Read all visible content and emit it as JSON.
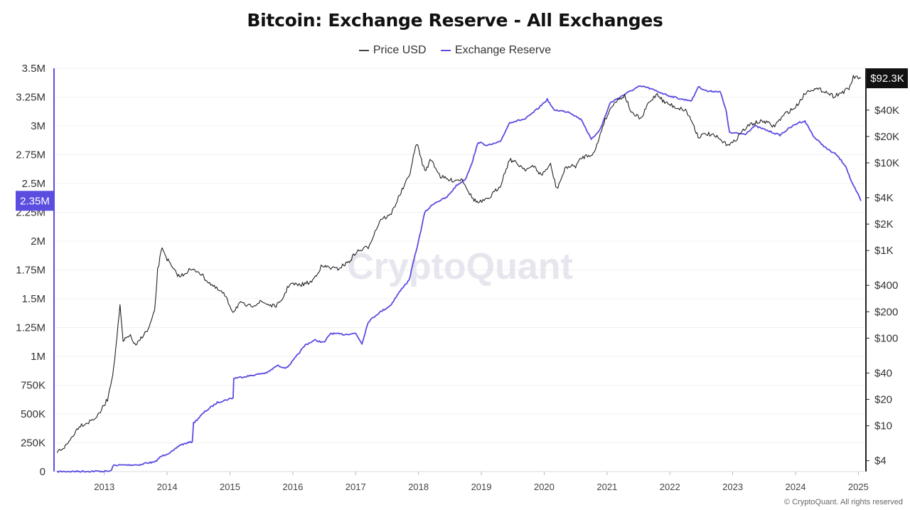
{
  "chart_data": {
    "type": "line",
    "title": "Bitcoin: Exchange Reserve - All Exchanges",
    "watermark": "CryptoQuant",
    "copyright": "© CryptoQuant. All rights reserved",
    "x_ticks": [
      "2013",
      "2014",
      "2015",
      "2016",
      "2017",
      "2018",
      "2019",
      "2020",
      "2021",
      "2022",
      "2023",
      "2024",
      "2025"
    ],
    "left_axis": {
      "min": 0,
      "max": 3500000,
      "ticks": [
        {
          "v": 0,
          "label": "0"
        },
        {
          "v": 250000,
          "label": "250K"
        },
        {
          "v": 500000,
          "label": "500K"
        },
        {
          "v": 750000,
          "label": "750K"
        },
        {
          "v": 1000000,
          "label": "1M"
        },
        {
          "v": 1250000,
          "label": "1.25M"
        },
        {
          "v": 1500000,
          "label": "1.5M"
        },
        {
          "v": 1750000,
          "label": "1.75M"
        },
        {
          "v": 2000000,
          "label": "2M"
        },
        {
          "v": 2250000,
          "label": "2.25M"
        },
        {
          "v": 2500000,
          "label": "2.5M"
        },
        {
          "v": 2750000,
          "label": "2.75M"
        },
        {
          "v": 3000000,
          "label": "3M"
        },
        {
          "v": 3250000,
          "label": "3.25M"
        },
        {
          "v": 3500000,
          "label": "3.5M"
        }
      ],
      "current_label": "2.35M",
      "current_value": 2350000
    },
    "right_axis": {
      "scale": "log",
      "min": 3,
      "max": 120000,
      "ticks": [
        {
          "v": 4,
          "label": "$4"
        },
        {
          "v": 10,
          "label": "$10"
        },
        {
          "v": 20,
          "label": "$20"
        },
        {
          "v": 40,
          "label": "$40"
        },
        {
          "v": 100,
          "label": "$100"
        },
        {
          "v": 200,
          "label": "$200"
        },
        {
          "v": 400,
          "label": "$400"
        },
        {
          "v": 1000,
          "label": "$1K"
        },
        {
          "v": 2000,
          "label": "$2K"
        },
        {
          "v": 4000,
          "label": "$4K"
        },
        {
          "v": 10000,
          "label": "$10K"
        },
        {
          "v": 20000,
          "label": "$20K"
        },
        {
          "v": 40000,
          "label": "$40K"
        }
      ],
      "current_label": "$92.3K",
      "current_value": 92300
    },
    "series": [
      {
        "name": "Price USD",
        "color": "#222222",
        "axis": "right",
        "points": [
          [
            2012.25,
            5
          ],
          [
            2012.4,
            6
          ],
          [
            2012.6,
            10
          ],
          [
            2012.75,
            11
          ],
          [
            2012.9,
            13
          ],
          [
            2013.05,
            20
          ],
          [
            2013.15,
            45
          ],
          [
            2013.25,
            230
          ],
          [
            2013.3,
            90
          ],
          [
            2013.4,
            110
          ],
          [
            2013.5,
            80
          ],
          [
            2013.6,
            105
          ],
          [
            2013.7,
            125
          ],
          [
            2013.8,
            200
          ],
          [
            2013.85,
            600
          ],
          [
            2013.92,
            1100
          ],
          [
            2014.0,
            800
          ],
          [
            2014.1,
            600
          ],
          [
            2014.2,
            500
          ],
          [
            2014.35,
            600
          ],
          [
            2014.5,
            580
          ],
          [
            2014.6,
            480
          ],
          [
            2014.75,
            380
          ],
          [
            2014.9,
            320
          ],
          [
            2015.05,
            200
          ],
          [
            2015.15,
            250
          ],
          [
            2015.3,
            230
          ],
          [
            2015.5,
            260
          ],
          [
            2015.7,
            230
          ],
          [
            2015.8,
            250
          ],
          [
            2015.95,
            420
          ],
          [
            2016.1,
            400
          ],
          [
            2016.3,
            440
          ],
          [
            2016.45,
            650
          ],
          [
            2016.55,
            650
          ],
          [
            2016.7,
            610
          ],
          [
            2016.9,
            750
          ],
          [
            2017.0,
            950
          ],
          [
            2017.2,
            1100
          ],
          [
            2017.4,
            2300
          ],
          [
            2017.55,
            2500
          ],
          [
            2017.7,
            4300
          ],
          [
            2017.85,
            7000
          ],
          [
            2017.97,
            17000
          ],
          [
            2018.1,
            8000
          ],
          [
            2018.2,
            11000
          ],
          [
            2018.35,
            7000
          ],
          [
            2018.5,
            6300
          ],
          [
            2018.7,
            6500
          ],
          [
            2018.85,
            4000
          ],
          [
            2018.95,
            3500
          ],
          [
            2019.1,
            3800
          ],
          [
            2019.3,
            5500
          ],
          [
            2019.45,
            11000
          ],
          [
            2019.55,
            10000
          ],
          [
            2019.7,
            8500
          ],
          [
            2019.85,
            9000
          ],
          [
            2019.95,
            7200
          ],
          [
            2020.1,
            9500
          ],
          [
            2020.2,
            5000
          ],
          [
            2020.35,
            9000
          ],
          [
            2020.5,
            9200
          ],
          [
            2020.6,
            11500
          ],
          [
            2020.8,
            13000
          ],
          [
            2020.95,
            29000
          ],
          [
            2021.1,
            48000
          ],
          [
            2021.28,
            59000
          ],
          [
            2021.4,
            36000
          ],
          [
            2021.55,
            32000
          ],
          [
            2021.65,
            47000
          ],
          [
            2021.8,
            62000
          ],
          [
            2021.9,
            50000
          ],
          [
            2022.1,
            43000
          ],
          [
            2022.25,
            40000
          ],
          [
            2022.35,
            30000
          ],
          [
            2022.45,
            20000
          ],
          [
            2022.6,
            21500
          ],
          [
            2022.75,
            19500
          ],
          [
            2022.88,
            16500
          ],
          [
            2023.0,
            16700
          ],
          [
            2023.15,
            23000
          ],
          [
            2023.3,
            28000
          ],
          [
            2023.5,
            30000
          ],
          [
            2023.65,
            26000
          ],
          [
            2023.85,
            37000
          ],
          [
            2024.0,
            43000
          ],
          [
            2024.15,
            62000
          ],
          [
            2024.25,
            70000
          ],
          [
            2024.45,
            67000
          ],
          [
            2024.6,
            58000
          ],
          [
            2024.75,
            64000
          ],
          [
            2024.85,
            70000
          ],
          [
            2024.92,
            95000
          ],
          [
            2025.0,
            94000
          ],
          [
            2025.04,
            92300
          ]
        ]
      },
      {
        "name": "Exchange Reserve",
        "color": "#5b4de0",
        "axis": "left",
        "points": [
          [
            2012.25,
            0
          ],
          [
            2012.6,
            2000
          ],
          [
            2013.1,
            3000
          ],
          [
            2013.15,
            55000
          ],
          [
            2013.6,
            60000
          ],
          [
            2013.65,
            75000
          ],
          [
            2013.8,
            80000
          ],
          [
            2013.9,
            130000
          ],
          [
            2014.1,
            180000
          ],
          [
            2014.2,
            230000
          ],
          [
            2014.4,
            260000
          ],
          [
            2014.42,
            420000
          ],
          [
            2014.6,
            520000
          ],
          [
            2014.8,
            600000
          ],
          [
            2015.05,
            640000
          ],
          [
            2015.06,
            810000
          ],
          [
            2015.3,
            830000
          ],
          [
            2015.6,
            860000
          ],
          [
            2015.75,
            920000
          ],
          [
            2015.9,
            900000
          ],
          [
            2016.0,
            960000
          ],
          [
            2016.2,
            1100000
          ],
          [
            2016.35,
            1140000
          ],
          [
            2016.5,
            1120000
          ],
          [
            2016.6,
            1200000
          ],
          [
            2016.8,
            1190000
          ],
          [
            2017.0,
            1200000
          ],
          [
            2017.1,
            1110000
          ],
          [
            2017.2,
            1300000
          ],
          [
            2017.35,
            1370000
          ],
          [
            2017.55,
            1440000
          ],
          [
            2017.75,
            1600000
          ],
          [
            2017.85,
            1660000
          ],
          [
            2018.0,
            2000000
          ],
          [
            2018.1,
            2250000
          ],
          [
            2018.25,
            2330000
          ],
          [
            2018.45,
            2380000
          ],
          [
            2018.6,
            2480000
          ],
          [
            2018.75,
            2540000
          ],
          [
            2018.85,
            2680000
          ],
          [
            2018.95,
            2860000
          ],
          [
            2019.1,
            2830000
          ],
          [
            2019.3,
            2860000
          ],
          [
            2019.45,
            3030000
          ],
          [
            2019.7,
            3060000
          ],
          [
            2019.9,
            3150000
          ],
          [
            2020.05,
            3230000
          ],
          [
            2020.15,
            3140000
          ],
          [
            2020.4,
            3120000
          ],
          [
            2020.6,
            3050000
          ],
          [
            2020.75,
            2880000
          ],
          [
            2020.9,
            2980000
          ],
          [
            2021.05,
            3200000
          ],
          [
            2021.3,
            3280000
          ],
          [
            2021.5,
            3340000
          ],
          [
            2021.6,
            3340000
          ],
          [
            2021.8,
            3300000
          ],
          [
            2022.0,
            3260000
          ],
          [
            2022.2,
            3230000
          ],
          [
            2022.35,
            3220000
          ],
          [
            2022.45,
            3340000
          ],
          [
            2022.6,
            3300000
          ],
          [
            2022.8,
            3300000
          ],
          [
            2022.9,
            3120000
          ],
          [
            2022.95,
            2940000
          ],
          [
            2023.2,
            2930000
          ],
          [
            2023.35,
            3000000
          ],
          [
            2023.55,
            2960000
          ],
          [
            2023.75,
            2920000
          ],
          [
            2023.9,
            2980000
          ],
          [
            2024.05,
            3030000
          ],
          [
            2024.15,
            3040000
          ],
          [
            2024.3,
            2900000
          ],
          [
            2024.5,
            2800000
          ],
          [
            2024.65,
            2750000
          ],
          [
            2024.8,
            2650000
          ],
          [
            2024.9,
            2500000
          ],
          [
            2025.0,
            2400000
          ],
          [
            2025.04,
            2350000
          ]
        ]
      }
    ]
  }
}
